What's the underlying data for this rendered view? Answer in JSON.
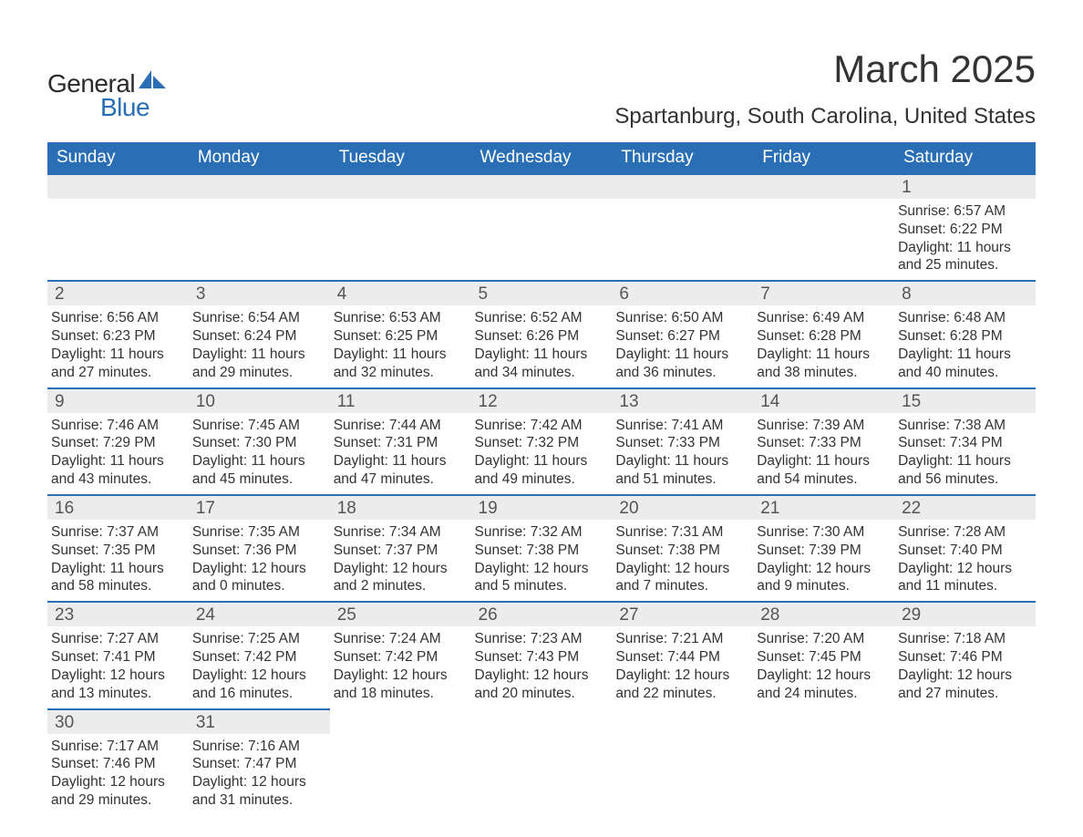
{
  "brand": {
    "word1": "General",
    "word2": "Blue",
    "brand_color": "#2a6fb5"
  },
  "title": {
    "month": "March 2025",
    "location": "Spartanburg, South Carolina, United States"
  },
  "style": {
    "header_bg": "#2a6fb5",
    "header_fg": "#ffffff",
    "row_divider": "#2a6fb5",
    "daynum_bg": "#ececec",
    "text_color": "#333333",
    "title_fontsize": 42,
    "location_fontsize": 24,
    "dayheader_fontsize": 19,
    "cell_fontsize": 15.5
  },
  "day_headers": [
    "Sunday",
    "Monday",
    "Tuesday",
    "Wednesday",
    "Thursday",
    "Friday",
    "Saturday"
  ],
  "weeks": [
    [
      null,
      null,
      null,
      null,
      null,
      null,
      {
        "n": "1",
        "sunrise": "Sunrise: 6:57 AM",
        "sunset": "Sunset: 6:22 PM",
        "dl1": "Daylight: 11 hours",
        "dl2": "and 25 minutes."
      }
    ],
    [
      {
        "n": "2",
        "sunrise": "Sunrise: 6:56 AM",
        "sunset": "Sunset: 6:23 PM",
        "dl1": "Daylight: 11 hours",
        "dl2": "and 27 minutes."
      },
      {
        "n": "3",
        "sunrise": "Sunrise: 6:54 AM",
        "sunset": "Sunset: 6:24 PM",
        "dl1": "Daylight: 11 hours",
        "dl2": "and 29 minutes."
      },
      {
        "n": "4",
        "sunrise": "Sunrise: 6:53 AM",
        "sunset": "Sunset: 6:25 PM",
        "dl1": "Daylight: 11 hours",
        "dl2": "and 32 minutes."
      },
      {
        "n": "5",
        "sunrise": "Sunrise: 6:52 AM",
        "sunset": "Sunset: 6:26 PM",
        "dl1": "Daylight: 11 hours",
        "dl2": "and 34 minutes."
      },
      {
        "n": "6",
        "sunrise": "Sunrise: 6:50 AM",
        "sunset": "Sunset: 6:27 PM",
        "dl1": "Daylight: 11 hours",
        "dl2": "and 36 minutes."
      },
      {
        "n": "7",
        "sunrise": "Sunrise: 6:49 AM",
        "sunset": "Sunset: 6:28 PM",
        "dl1": "Daylight: 11 hours",
        "dl2": "and 38 minutes."
      },
      {
        "n": "8",
        "sunrise": "Sunrise: 6:48 AM",
        "sunset": "Sunset: 6:28 PM",
        "dl1": "Daylight: 11 hours",
        "dl2": "and 40 minutes."
      }
    ],
    [
      {
        "n": "9",
        "sunrise": "Sunrise: 7:46 AM",
        "sunset": "Sunset: 7:29 PM",
        "dl1": "Daylight: 11 hours",
        "dl2": "and 43 minutes."
      },
      {
        "n": "10",
        "sunrise": "Sunrise: 7:45 AM",
        "sunset": "Sunset: 7:30 PM",
        "dl1": "Daylight: 11 hours",
        "dl2": "and 45 minutes."
      },
      {
        "n": "11",
        "sunrise": "Sunrise: 7:44 AM",
        "sunset": "Sunset: 7:31 PM",
        "dl1": "Daylight: 11 hours",
        "dl2": "and 47 minutes."
      },
      {
        "n": "12",
        "sunrise": "Sunrise: 7:42 AM",
        "sunset": "Sunset: 7:32 PM",
        "dl1": "Daylight: 11 hours",
        "dl2": "and 49 minutes."
      },
      {
        "n": "13",
        "sunrise": "Sunrise: 7:41 AM",
        "sunset": "Sunset: 7:33 PM",
        "dl1": "Daylight: 11 hours",
        "dl2": "and 51 minutes."
      },
      {
        "n": "14",
        "sunrise": "Sunrise: 7:39 AM",
        "sunset": "Sunset: 7:33 PM",
        "dl1": "Daylight: 11 hours",
        "dl2": "and 54 minutes."
      },
      {
        "n": "15",
        "sunrise": "Sunrise: 7:38 AM",
        "sunset": "Sunset: 7:34 PM",
        "dl1": "Daylight: 11 hours",
        "dl2": "and 56 minutes."
      }
    ],
    [
      {
        "n": "16",
        "sunrise": "Sunrise: 7:37 AM",
        "sunset": "Sunset: 7:35 PM",
        "dl1": "Daylight: 11 hours",
        "dl2": "and 58 minutes."
      },
      {
        "n": "17",
        "sunrise": "Sunrise: 7:35 AM",
        "sunset": "Sunset: 7:36 PM",
        "dl1": "Daylight: 12 hours",
        "dl2": "and 0 minutes."
      },
      {
        "n": "18",
        "sunrise": "Sunrise: 7:34 AM",
        "sunset": "Sunset: 7:37 PM",
        "dl1": "Daylight: 12 hours",
        "dl2": "and 2 minutes."
      },
      {
        "n": "19",
        "sunrise": "Sunrise: 7:32 AM",
        "sunset": "Sunset: 7:38 PM",
        "dl1": "Daylight: 12 hours",
        "dl2": "and 5 minutes."
      },
      {
        "n": "20",
        "sunrise": "Sunrise: 7:31 AM",
        "sunset": "Sunset: 7:38 PM",
        "dl1": "Daylight: 12 hours",
        "dl2": "and 7 minutes."
      },
      {
        "n": "21",
        "sunrise": "Sunrise: 7:30 AM",
        "sunset": "Sunset: 7:39 PM",
        "dl1": "Daylight: 12 hours",
        "dl2": "and 9 minutes."
      },
      {
        "n": "22",
        "sunrise": "Sunrise: 7:28 AM",
        "sunset": "Sunset: 7:40 PM",
        "dl1": "Daylight: 12 hours",
        "dl2": "and 11 minutes."
      }
    ],
    [
      {
        "n": "23",
        "sunrise": "Sunrise: 7:27 AM",
        "sunset": "Sunset: 7:41 PM",
        "dl1": "Daylight: 12 hours",
        "dl2": "and 13 minutes."
      },
      {
        "n": "24",
        "sunrise": "Sunrise: 7:25 AM",
        "sunset": "Sunset: 7:42 PM",
        "dl1": "Daylight: 12 hours",
        "dl2": "and 16 minutes."
      },
      {
        "n": "25",
        "sunrise": "Sunrise: 7:24 AM",
        "sunset": "Sunset: 7:42 PM",
        "dl1": "Daylight: 12 hours",
        "dl2": "and 18 minutes."
      },
      {
        "n": "26",
        "sunrise": "Sunrise: 7:23 AM",
        "sunset": "Sunset: 7:43 PM",
        "dl1": "Daylight: 12 hours",
        "dl2": "and 20 minutes."
      },
      {
        "n": "27",
        "sunrise": "Sunrise: 7:21 AM",
        "sunset": "Sunset: 7:44 PM",
        "dl1": "Daylight: 12 hours",
        "dl2": "and 22 minutes."
      },
      {
        "n": "28",
        "sunrise": "Sunrise: 7:20 AM",
        "sunset": "Sunset: 7:45 PM",
        "dl1": "Daylight: 12 hours",
        "dl2": "and 24 minutes."
      },
      {
        "n": "29",
        "sunrise": "Sunrise: 7:18 AM",
        "sunset": "Sunset: 7:46 PM",
        "dl1": "Daylight: 12 hours",
        "dl2": "and 27 minutes."
      }
    ],
    [
      {
        "n": "30",
        "sunrise": "Sunrise: 7:17 AM",
        "sunset": "Sunset: 7:46 PM",
        "dl1": "Daylight: 12 hours",
        "dl2": "and 29 minutes."
      },
      {
        "n": "31",
        "sunrise": "Sunrise: 7:16 AM",
        "sunset": "Sunset: 7:47 PM",
        "dl1": "Daylight: 12 hours",
        "dl2": "and 31 minutes."
      },
      null,
      null,
      null,
      null,
      null
    ]
  ]
}
